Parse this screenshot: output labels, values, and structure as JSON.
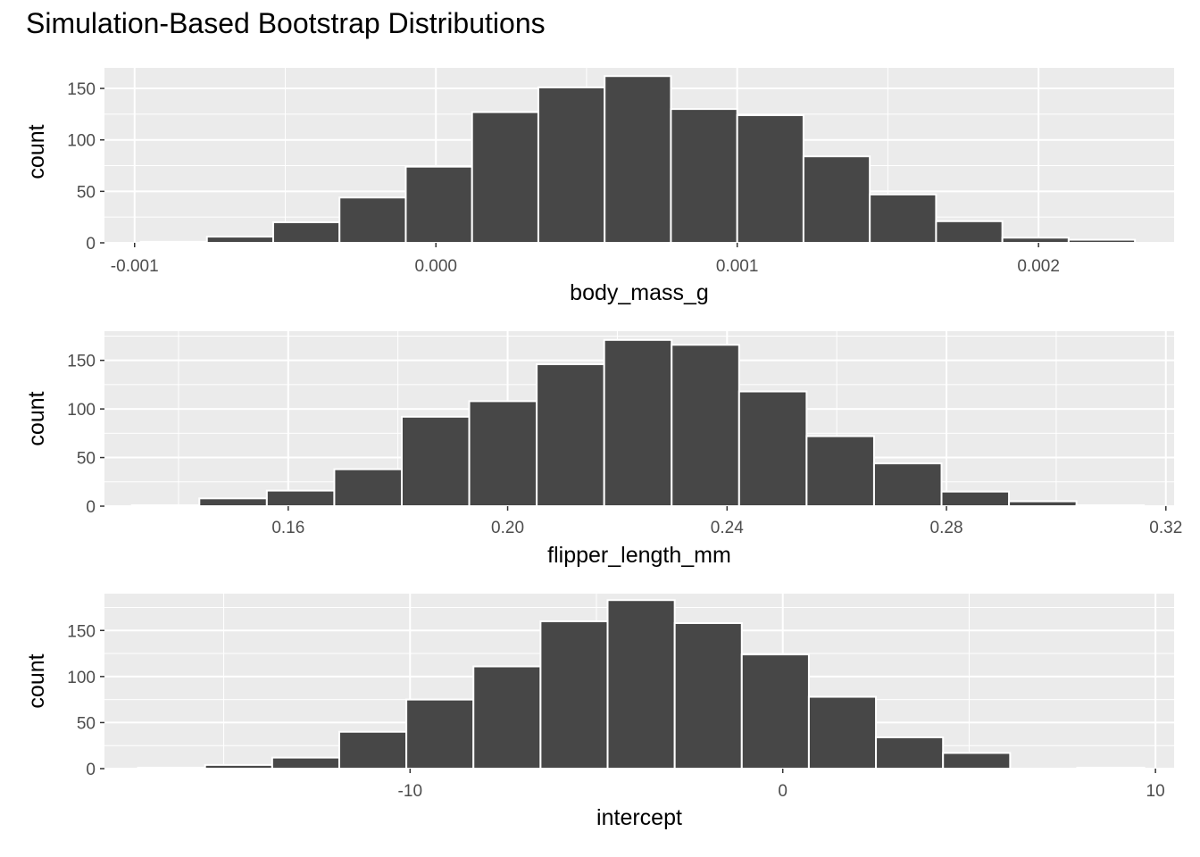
{
  "title": "Simulation-Based Bootstrap Distributions",
  "chart_data": [
    {
      "type": "bar",
      "xlabel": "body_mass_g",
      "ylabel": "count",
      "xlim": [
        -0.0011,
        0.00245
      ],
      "ylim": [
        0,
        170
      ],
      "xticks": [
        -0.001,
        0.0,
        0.001,
        0.002
      ],
      "xtick_labels": [
        "-0.001",
        "0.000",
        "0.001",
        "0.002"
      ],
      "yticks": [
        0,
        50,
        100,
        150
      ],
      "ytick_labels": [
        "0",
        "50",
        "100",
        "150"
      ],
      "bin_edges": [
        -0.00098,
        -0.00076,
        -0.00054,
        -0.00032,
        -0.0001,
        0.00012,
        0.00034,
        0.00056,
        0.00078,
        0.001,
        0.00122,
        0.00144,
        0.00166,
        0.00188,
        0.0021,
        0.00232
      ],
      "values": [
        1,
        6,
        20,
        44,
        74,
        127,
        151,
        162,
        130,
        124,
        84,
        47,
        21,
        5,
        3
      ],
      "grid": true,
      "bar_color": "#474747"
    },
    {
      "type": "bar",
      "xlabel": "flipper_length_mm",
      "ylabel": "count",
      "xlim": [
        0.1265,
        0.3215
      ],
      "ylim": [
        0,
        180
      ],
      "xticks": [
        0.16,
        0.2,
        0.24,
        0.28,
        0.32
      ],
      "xtick_labels": [
        "0.16",
        "0.20",
        "0.24",
        "0.28",
        "0.32"
      ],
      "yticks": [
        0,
        50,
        100,
        150
      ],
      "ytick_labels": [
        "0",
        "50",
        "100",
        "150"
      ],
      "bin_edges": [
        0.1315,
        0.1438,
        0.1561,
        0.1684,
        0.1807,
        0.193,
        0.2053,
        0.2176,
        0.2299,
        0.2422,
        0.2545,
        0.2668,
        0.2791,
        0.2914,
        0.3037,
        0.316
      ],
      "values": [
        1,
        8,
        16,
        38,
        92,
        108,
        146,
        171,
        166,
        118,
        72,
        44,
        15,
        5,
        1
      ],
      "grid": true,
      "bar_color": "#474747"
    },
    {
      "type": "bar",
      "xlabel": "intercept",
      "ylabel": "count",
      "xlim": [
        -18.2,
        10.5
      ],
      "ylim": [
        0,
        190
      ],
      "xticks": [
        -10,
        0,
        10
      ],
      "xtick_labels": [
        "-10",
        "0",
        "10"
      ],
      "yticks": [
        0,
        50,
        100,
        150
      ],
      "ytick_labels": [
        "0",
        "50",
        "100",
        "150"
      ],
      "bin_edges": [
        -17.3,
        -15.5,
        -13.7,
        -11.9,
        -10.1,
        -8.3,
        -6.5,
        -4.7,
        -2.9,
        -1.1,
        0.7,
        2.5,
        4.3,
        6.1,
        7.9,
        9.7
      ],
      "values": [
        1,
        4,
        12,
        40,
        75,
        111,
        160,
        183,
        158,
        124,
        78,
        34,
        17,
        0,
        1
      ],
      "grid": true,
      "bar_color": "#474747"
    }
  ]
}
